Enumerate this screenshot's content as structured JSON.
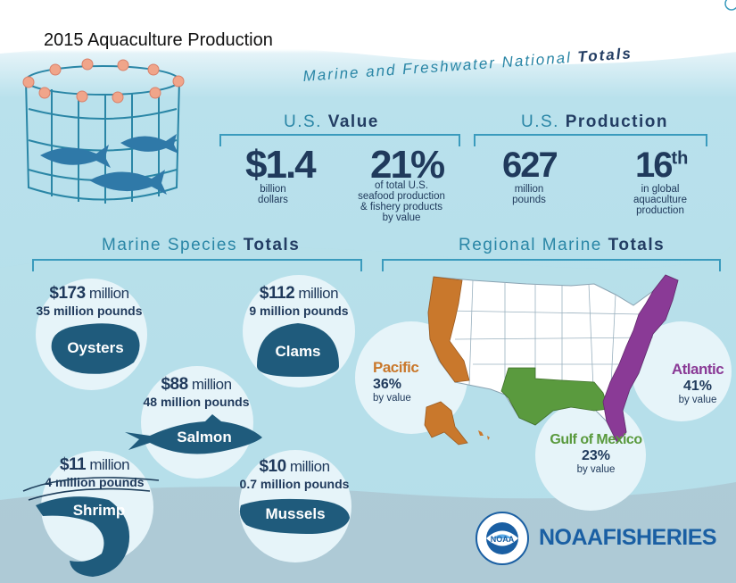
{
  "title": "2015 Aquaculture Production",
  "header": {
    "main_prefix": "Marine and Freshwater National",
    "main_bold": "Totals"
  },
  "value": {
    "heading_prefix": "U.S.",
    "heading_bold": "Value",
    "stat1_number": "$1.4",
    "stat1_line1": "billion",
    "stat1_line2": "dollars",
    "stat2_number": "21%",
    "stat2_line1": "of total U.S.",
    "stat2_line2": "seafood production",
    "stat2_line3": "& fishery products",
    "stat2_line4": "by value"
  },
  "production": {
    "heading_prefix": "U.S.",
    "heading_bold": "Production",
    "stat1_number": "627",
    "stat1_line1": "million",
    "stat1_line2": "pounds",
    "stat2_number": "16",
    "stat2_sup": "th",
    "stat2_line1": "in global",
    "stat2_line2": "aquaculture",
    "stat2_line3": "production"
  },
  "species": {
    "heading_prefix": "Marine Species",
    "heading_bold": "Totals",
    "items": [
      {
        "name": "Oysters",
        "value_num": "$173",
        "value_unit": " million",
        "pounds": "35 million pounds"
      },
      {
        "name": "Clams",
        "value_num": "$112",
        "value_unit": " million",
        "pounds": "9 million pounds"
      },
      {
        "name": "Salmon",
        "value_num": "$88",
        "value_unit": " million",
        "pounds": "48 million pounds"
      },
      {
        "name": "Shrimp",
        "value_num": "$11",
        "value_unit": " million",
        "pounds": "4 million pounds"
      },
      {
        "name": "Mussels",
        "value_num": "$10",
        "value_unit": " million",
        "pounds": "0.7 million pounds"
      }
    ]
  },
  "regional": {
    "heading_prefix": "Regional Marine",
    "heading_bold": "Totals",
    "regions": [
      {
        "name": "Pacific",
        "pct": "36%",
        "by": "by value",
        "color": "#c9782c"
      },
      {
        "name": "Atlantic",
        "pct": "41%",
        "by": "by value",
        "color": "#8a3a96"
      },
      {
        "name": "Gulf of Mexico",
        "pct": "23%",
        "by": "by value",
        "color": "#5a9a3e"
      }
    ]
  },
  "logo": {
    "word1": "NOAA",
    "word2": "FISHERIES",
    "seal_text": "NOAA",
    "ring_text": "NATIONAL OCEANIC AND ATMOSPHERIC ADMINISTRATION · U.S. DEPARTMENT OF COMMERCE"
  },
  "colors": {
    "navy": "#203a5c",
    "teal_heading": "#2a86a6",
    "shell": "#1f5b7c",
    "noaa_blue": "#1a5fa3"
  }
}
